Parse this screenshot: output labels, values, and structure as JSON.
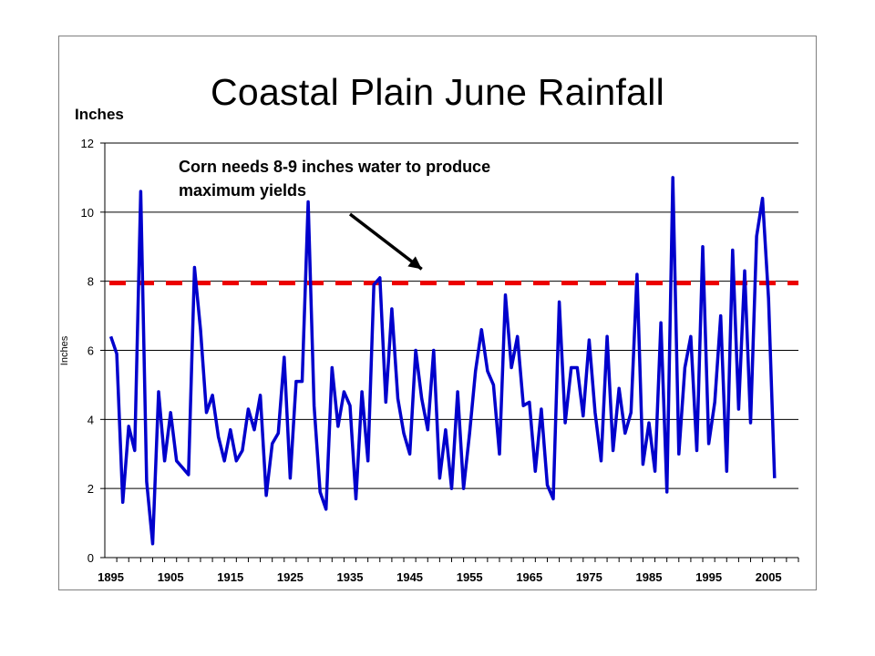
{
  "chart_data": {
    "type": "line",
    "title": "Coastal Plain June Rainfall",
    "ylabel": "Inches",
    "ylabel_top": "Inches",
    "xlabel": "",
    "xlim": [
      1894,
      2010
    ],
    "ylim": [
      0,
      12
    ],
    "yticks": [
      0,
      2,
      4,
      6,
      8,
      10,
      12
    ],
    "xticks": [
      1895,
      1905,
      1915,
      1925,
      1935,
      1945,
      1955,
      1965,
      1975,
      1985,
      1995,
      2005
    ],
    "grid": "horizontal",
    "legend": "none",
    "series": [
      {
        "values_x": [
          1895,
          1896,
          1897,
          1898,
          1899,
          1900,
          1901,
          1902,
          1903,
          1904,
          1905,
          1906,
          1907,
          1908,
          1909,
          1910,
          1911,
          1912,
          1913,
          1914,
          1915,
          1916,
          1917,
          1918,
          1919,
          1920,
          1921,
          1922,
          1923,
          1924,
          1925,
          1926,
          1927,
          1928,
          1929,
          1930,
          1931,
          1932,
          1933,
          1934,
          1935,
          1936,
          1937,
          1938,
          1939,
          1940,
          1941,
          1942,
          1943,
          1944,
          1945,
          1946,
          1947,
          1948,
          1949,
          1950,
          1951,
          1952,
          1953,
          1954,
          1955,
          1956,
          1957,
          1958,
          1959,
          1960,
          1961,
          1962,
          1963,
          1964,
          1965,
          1966,
          1967,
          1968,
          1969,
          1970,
          1971,
          1972,
          1973,
          1974,
          1975,
          1976,
          1977,
          1978,
          1979,
          1980,
          1981,
          1982,
          1983,
          1984,
          1985,
          1986,
          1987,
          1988,
          1989,
          1990,
          1991,
          1992,
          1993,
          1994,
          1995,
          1996,
          1997,
          1998,
          1999,
          2000,
          2001,
          2002,
          2003,
          2004,
          2005,
          2006
        ],
        "values": [
          6.4,
          5.9,
          1.6,
          3.8,
          3.1,
          10.6,
          2.2,
          0.4,
          4.8,
          2.8,
          4.2,
          2.8,
          2.6,
          2.4,
          8.4,
          6.6,
          4.2,
          4.7,
          3.5,
          2.8,
          3.7,
          2.8,
          3.1,
          4.3,
          3.7,
          4.7,
          1.8,
          3.3,
          3.6,
          5.8,
          2.3,
          5.1,
          5.1,
          10.3,
          4.4,
          1.9,
          1.4,
          5.5,
          3.8,
          4.8,
          4.4,
          1.7,
          4.8,
          2.8,
          7.9,
          8.1,
          4.5,
          7.2,
          4.6,
          3.6,
          3.0,
          6.0,
          4.6,
          3.7,
          6.0,
          2.3,
          3.7,
          2.0,
          4.8,
          2.0,
          3.6,
          5.4,
          6.6,
          5.4,
          5.0,
          3.0,
          7.6,
          5.5,
          6.4,
          4.4,
          4.5,
          2.5,
          4.3,
          2.1,
          1.7,
          7.4,
          3.9,
          5.5,
          5.5,
          4.1,
          6.3,
          4.2,
          2.8,
          6.4,
          3.1,
          4.9,
          3.6,
          4.2,
          8.2,
          2.7,
          3.9,
          2.5,
          6.8,
          1.9,
          11.0,
          3.0,
          5.5,
          6.4,
          3.1,
          9.0,
          3.3,
          4.5,
          7.0,
          2.5,
          8.9,
          4.3,
          8.3,
          3.9,
          9.3,
          10.4,
          7.5,
          2.3
        ],
        "color": "#0000cc"
      }
    ],
    "reference_line": {
      "value": 7.95,
      "color": "#ee0000",
      "style": "dashed"
    },
    "annotation": {
      "lines": [
        "Corn needs 8-9 inches water to produce",
        "maximum yields"
      ],
      "arrow_target_x": 1947,
      "arrow_target_y": 8.35
    }
  }
}
